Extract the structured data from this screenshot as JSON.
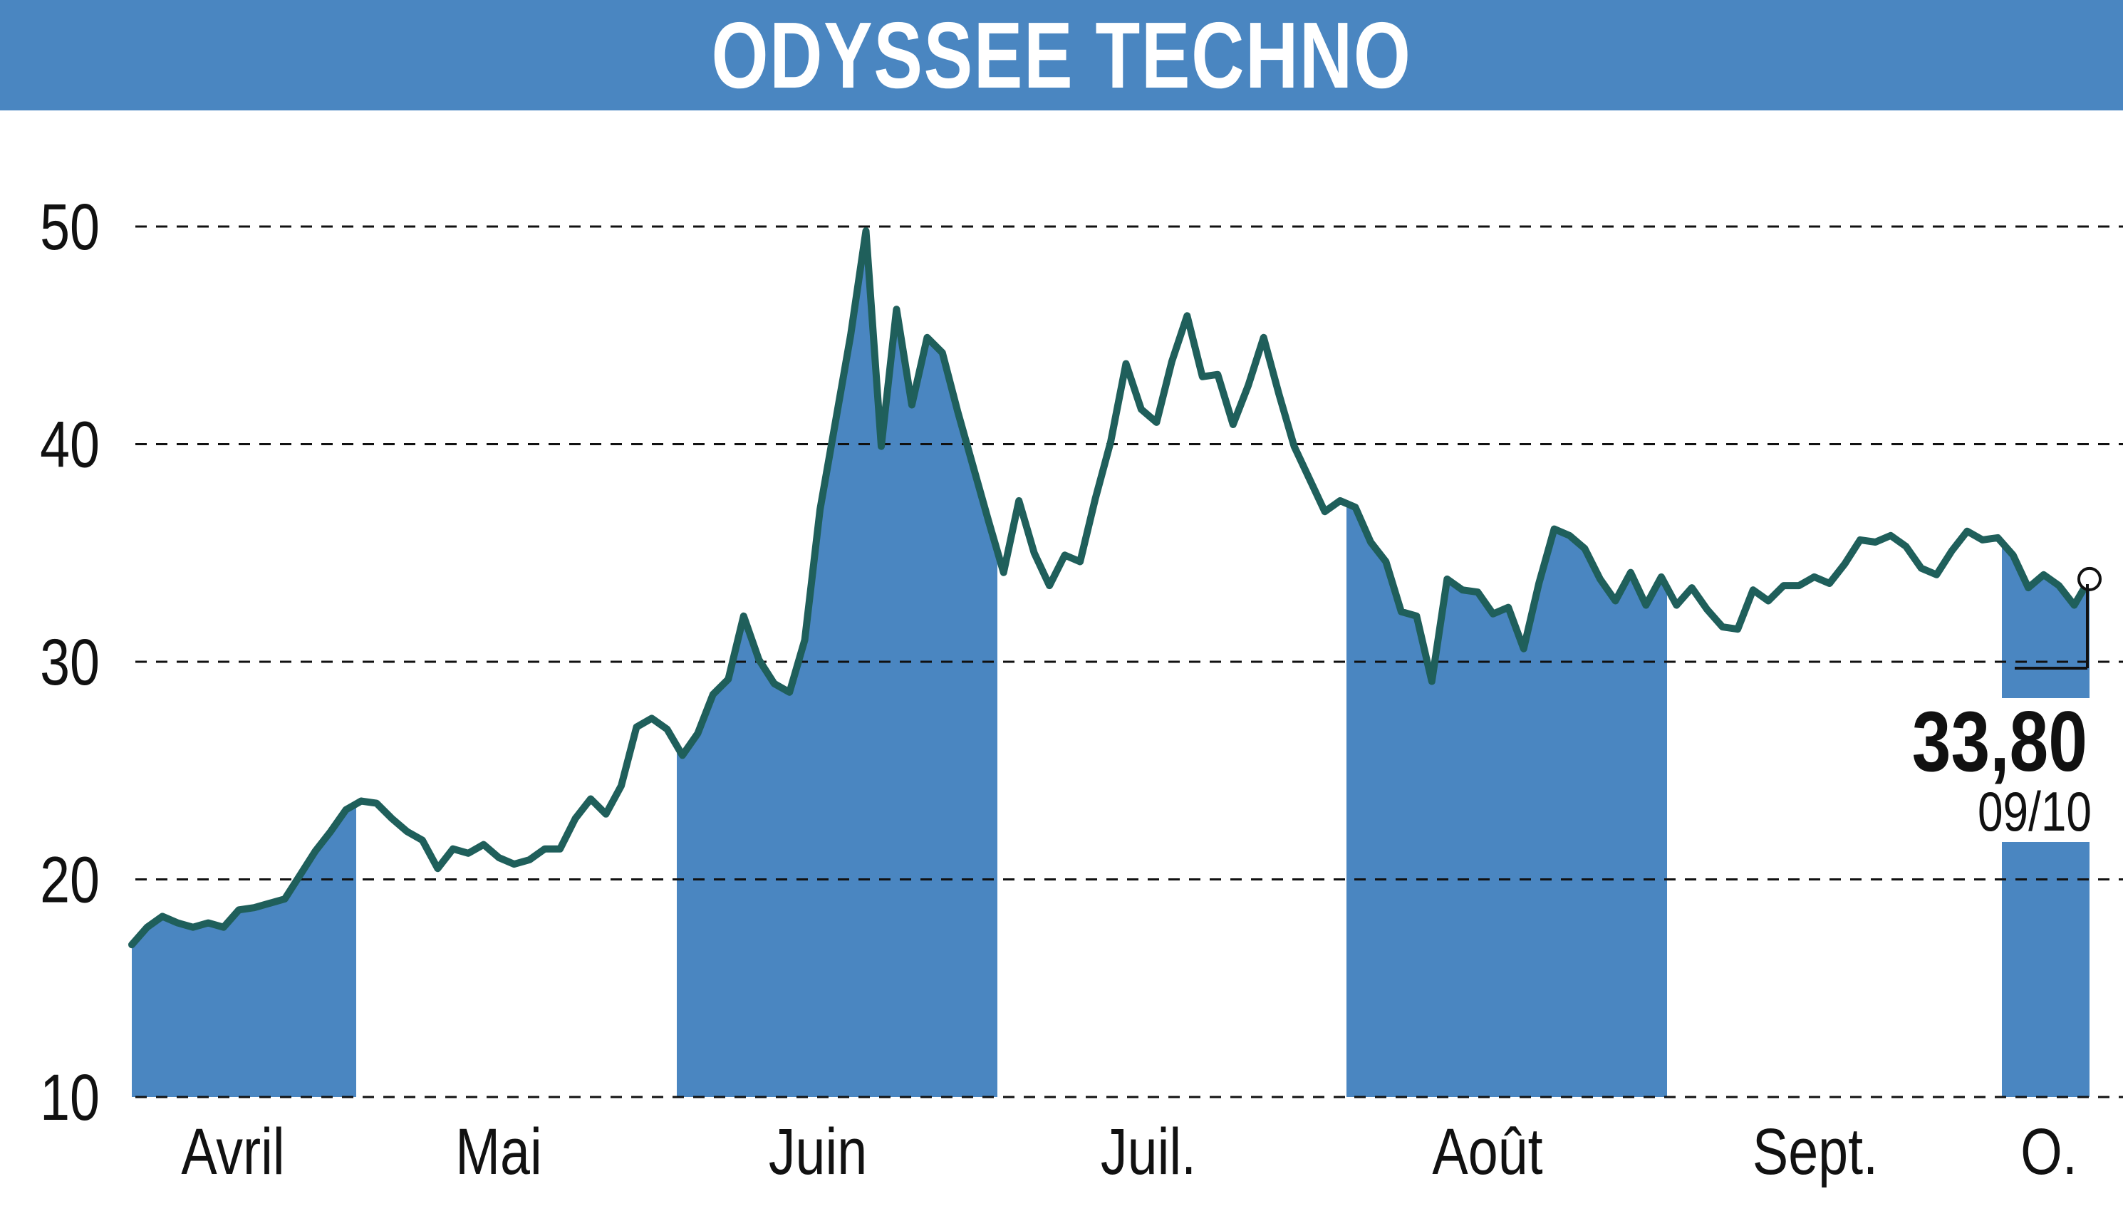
{
  "title": "ODYSSEE TECHNO",
  "colors": {
    "band": "#4a86c1",
    "line": "#1f5f5b",
    "grid": "#111111",
    "background": "#ffffff"
  },
  "last_value": {
    "value_label": "33,80",
    "date_label": "09/10"
  },
  "chart_data": {
    "type": "area",
    "title": "ODYSSEE TECHNO",
    "ylim": [
      10,
      50
    ],
    "y_ticks": [
      "10",
      "20",
      "30",
      "40",
      "50"
    ],
    "grid": "horizontal-dashed",
    "month_labels": [
      "Avril",
      "Mai",
      "Juin",
      "Juil.",
      "Août",
      "Sept.",
      "O."
    ],
    "shaded_months": [
      "Avril",
      "Juin",
      "Août",
      "O."
    ],
    "series": [
      {
        "values": [
          17.0,
          17.8,
          18.3,
          18.0,
          17.8,
          18.0,
          17.8,
          18.6,
          18.7,
          18.9,
          19.1,
          20.2,
          21.3,
          22.2,
          23.2,
          23.6,
          23.5,
          22.8,
          22.2,
          21.8,
          20.5,
          21.4,
          21.2,
          21.6,
          21.0,
          20.7,
          20.9,
          21.4,
          21.4,
          22.8,
          23.7,
          23.0,
          24.3,
          27.0,
          27.4,
          26.9,
          25.7,
          26.7,
          28.5,
          29.2,
          32.1,
          30.1,
          29.0,
          28.6,
          31.0,
          37.0,
          41.0,
          45.0,
          49.8,
          39.9,
          46.2,
          41.8,
          44.9,
          44.2,
          41.5,
          39.0,
          36.5,
          34.1,
          37.4,
          35.0,
          33.5,
          34.9,
          34.6,
          37.5,
          40.1,
          43.7,
          41.6,
          41.0,
          43.8,
          45.9,
          43.1,
          43.2,
          40.9,
          42.7,
          44.9,
          42.3,
          39.9,
          38.4,
          36.9,
          37.4,
          37.1,
          35.5,
          34.6,
          32.3,
          32.1,
          29.1,
          33.8,
          33.3,
          33.2,
          32.2,
          32.5,
          30.6,
          33.6,
          36.1,
          35.8,
          35.2,
          33.8,
          32.8,
          34.1,
          32.6,
          33.9,
          32.6,
          33.4,
          32.4,
          31.6,
          31.5,
          33.3,
          32.8,
          33.5,
          33.5,
          33.9,
          33.6,
          34.5,
          35.6,
          35.5,
          35.8,
          35.3,
          34.3,
          34.0,
          35.1,
          36.0,
          35.6,
          35.7,
          34.9,
          33.4,
          34.0,
          33.5,
          32.6,
          33.8
        ]
      }
    ]
  }
}
